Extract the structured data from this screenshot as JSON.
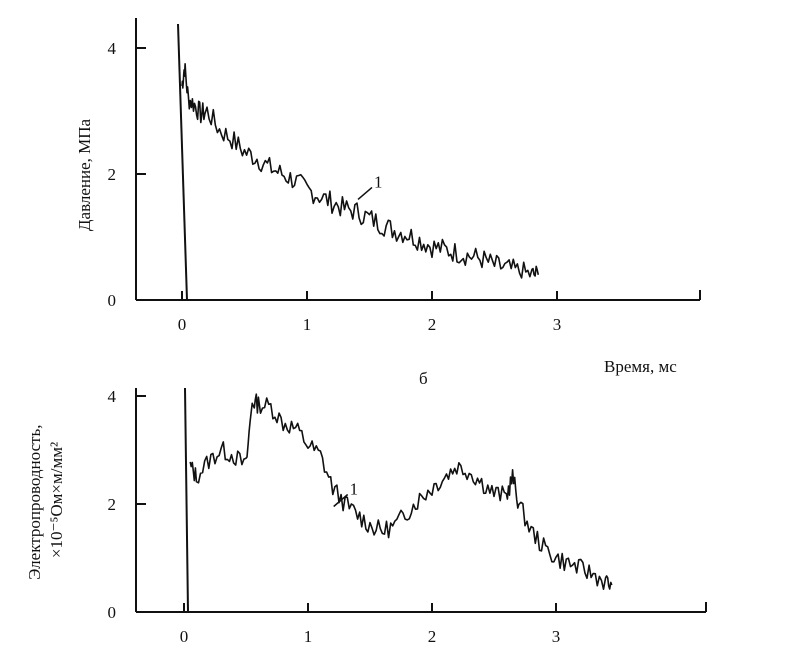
{
  "chart_data": [
    {
      "type": "line",
      "ylabel": "Давление, МПа",
      "xlabel": "Время, мс",
      "xlim": [
        -0.4,
        4.2
      ],
      "ylim": [
        0,
        4.2
      ],
      "x_ticks": [
        "0",
        "1",
        "2",
        "3"
      ],
      "y_ticks": [
        "0",
        "2",
        "4"
      ],
      "curve_label": "1",
      "series": [
        {
          "x": [
            0.0,
            0.02,
            0.05,
            0.1,
            0.15,
            0.2,
            0.3,
            0.4,
            0.5,
            0.6,
            0.7,
            0.8,
            0.9,
            1.0,
            1.1,
            1.2,
            1.3,
            1.4,
            1.5,
            1.6,
            1.7,
            1.8,
            1.9,
            2.0,
            2.1,
            2.2,
            2.3,
            2.4,
            2.5,
            2.6,
            2.7,
            2.8,
            2.85
          ],
          "values": [
            3.4,
            3.7,
            3.2,
            3.1,
            2.95,
            3.0,
            2.7,
            2.55,
            2.35,
            2.25,
            2.1,
            2.0,
            1.9,
            1.75,
            1.65,
            1.55,
            1.45,
            1.4,
            1.3,
            1.2,
            1.1,
            1.05,
            0.95,
            0.85,
            0.8,
            0.75,
            0.7,
            0.65,
            0.55,
            0.5,
            0.45,
            0.4,
            0.4
          ]
        }
      ]
    },
    {
      "type": "line",
      "ylabel": "Электропроводность, ×10⁻⁵Ом×м/мм²",
      "xlim": [
        -0.4,
        4.2
      ],
      "ylim": [
        0,
        4.2
      ],
      "x_ticks": [
        "0",
        "1",
        "2",
        "3"
      ],
      "y_ticks": [
        "0",
        "2",
        "4"
      ],
      "curve_label": "1",
      "panel_label": "б",
      "series": [
        {
          "x": [
            0.05,
            0.1,
            0.2,
            0.3,
            0.4,
            0.5,
            0.55,
            0.6,
            0.7,
            0.8,
            0.9,
            1.0,
            1.1,
            1.2,
            1.3,
            1.4,
            1.5,
            1.6,
            1.7,
            1.8,
            1.9,
            2.0,
            2.1,
            2.2,
            2.3,
            2.4,
            2.5,
            2.6,
            2.65,
            2.7,
            2.8,
            2.9,
            3.0,
            3.1,
            3.2,
            3.3,
            3.4,
            3.45
          ],
          "values": [
            2.7,
            2.5,
            2.8,
            3.0,
            2.9,
            2.7,
            3.9,
            3.85,
            3.8,
            3.5,
            3.4,
            3.1,
            2.9,
            2.3,
            2.0,
            1.8,
            1.6,
            1.5,
            1.6,
            1.85,
            2.1,
            2.3,
            2.5,
            2.7,
            2.6,
            2.4,
            2.2,
            2.15,
            2.5,
            2.0,
            1.5,
            1.2,
            1.0,
            0.9,
            0.8,
            0.7,
            0.55,
            0.5
          ]
        }
      ]
    }
  ]
}
